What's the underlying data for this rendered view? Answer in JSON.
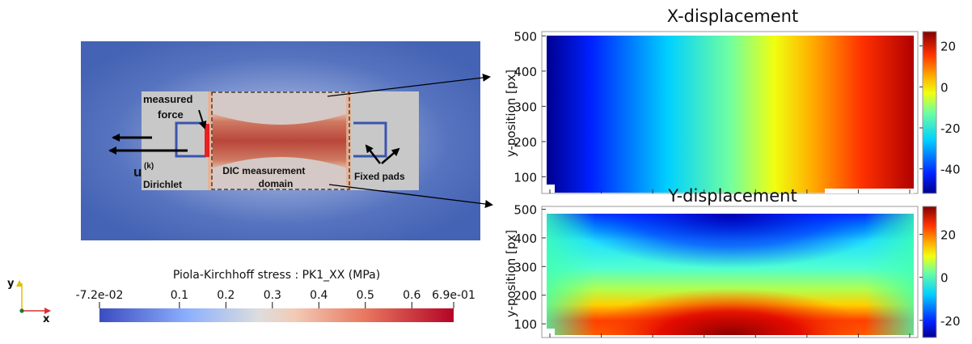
{
  "simulation": {
    "label_measured_force": "measured force",
    "label_u_symbol": "u",
    "label_u_superscript": "(k)",
    "label_dirichlet": "Dirichlet",
    "label_dic_domain": "DIC measurement domain",
    "label_fixed_pads": "Fixed pads",
    "colors": {
      "background_blue": "#4a69b8",
      "specimen_gray": "#c4c4c4",
      "gauge_red": "#c55a44",
      "force_red": "#e82020",
      "pad_blue": "#3a55b0"
    }
  },
  "axes_triad": {
    "y_label": "y",
    "x_label": "x"
  },
  "stress_colorbar": {
    "title": "Piola-Kirchhoff stress : PK1_XX (MPa)",
    "min": -0.072,
    "max": 0.69,
    "ticks": [
      {
        "value": -0.072,
        "label": "-7.2e-02"
      },
      {
        "value": 0.1,
        "label": "0.1"
      },
      {
        "value": 0.2,
        "label": "0.2"
      },
      {
        "value": 0.3,
        "label": "0.3"
      },
      {
        "value": 0.4,
        "label": "0.4"
      },
      {
        "value": 0.5,
        "label": "0.5"
      },
      {
        "value": 0.6,
        "label": "0.6"
      },
      {
        "value": 0.69,
        "label": "6.9e-01"
      }
    ],
    "colormap": "cool-to-warm"
  },
  "x_displacement": {
    "title": "X-displacement",
    "ylabel": "y-position [px]",
    "yticks": [
      {
        "value": 100,
        "label": "100"
      },
      {
        "value": 200,
        "label": "200"
      },
      {
        "value": 300,
        "label": "300"
      },
      {
        "value": 400,
        "label": "400"
      },
      {
        "value": 500,
        "label": "500"
      }
    ],
    "ylim": [
      55,
      510
    ],
    "field_direction": "horizontal",
    "colorbar_ticks": [
      {
        "value": 20,
        "label": "20"
      },
      {
        "value": 0,
        "label": "0"
      },
      {
        "value": -20,
        "label": "-20"
      },
      {
        "value": -40,
        "label": "-40"
      }
    ],
    "clim": [
      -52,
      27
    ],
    "colormap": "jet"
  },
  "y_displacement": {
    "title": "Y-displacement",
    "ylabel": "y-position [px]",
    "yticks": [
      {
        "value": 100,
        "label": "100"
      },
      {
        "value": 200,
        "label": "200"
      },
      {
        "value": 300,
        "label": "300"
      },
      {
        "value": 400,
        "label": "400"
      },
      {
        "value": 500,
        "label": "500"
      }
    ],
    "ylim": [
      55,
      510
    ],
    "field_direction": "vertical-bowl",
    "colorbar_ticks": [
      {
        "value": 20,
        "label": "20"
      },
      {
        "value": 0,
        "label": "0"
      },
      {
        "value": -20,
        "label": "-20"
      }
    ],
    "clim": [
      -28,
      33
    ],
    "colormap": "jet"
  }
}
